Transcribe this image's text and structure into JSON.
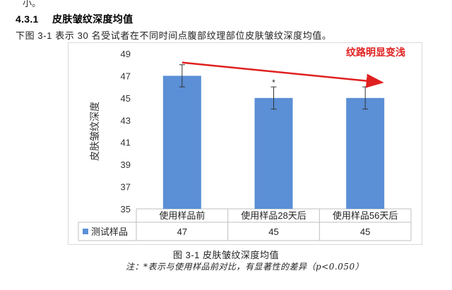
{
  "page": {
    "top_fragment": "小。",
    "section_number": "4.3.1",
    "section_title": "皮肤皱纹深度均值",
    "intro": "下图 3-1 表示 30 名受试者在不同时间点腹部纹理部位皮肤皱纹深度均值。",
    "caption": "图 3-1 皮肤皱纹深度均值",
    "note": "注：*表示与使用样品前对比，有显著性的差异（p<0.050）"
  },
  "chart_data": {
    "type": "bar",
    "categories": [
      "使用样品前",
      "使用样品28天后",
      "使用样品56天后"
    ],
    "series": [
      {
        "name": "测试样品",
        "values": [
          47,
          45,
          45
        ],
        "error": [
          1,
          1,
          1
        ],
        "color": "#5b8fd6"
      }
    ],
    "ylabel": "皮肤皱纹深度",
    "ylim": [
      35,
      49
    ],
    "yticks": [
      35,
      37,
      39,
      41,
      43,
      45,
      47,
      49
    ],
    "significance_marks": [
      "",
      "*",
      ""
    ],
    "annotation": {
      "text": "纹路明显变浅",
      "color": "#e02020"
    },
    "grid": false,
    "legend": "data-table-row"
  }
}
